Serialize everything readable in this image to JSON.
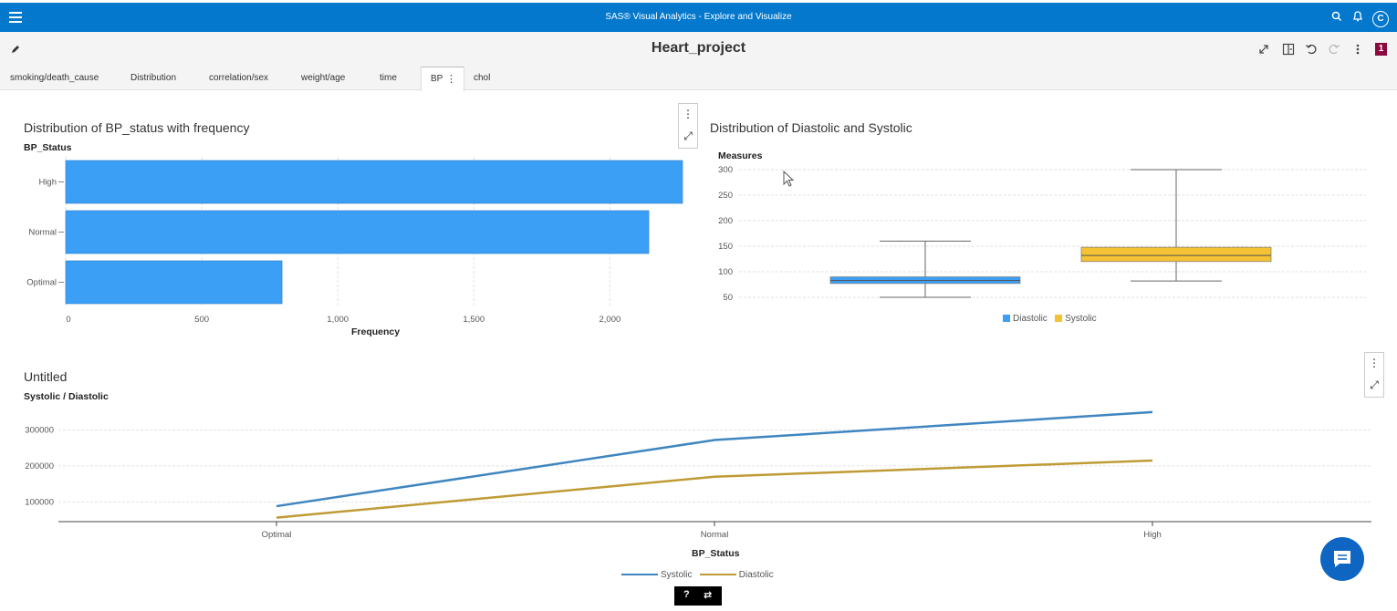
{
  "app": {
    "title": "SAS® Visual Analytics - Explore and Visualize",
    "avatar_initial": "C",
    "menu_icon": "hamburger-icon",
    "icons": [
      "search-icon",
      "bell-icon"
    ]
  },
  "report": {
    "title": "Heart_project",
    "badge": "1",
    "tools": [
      "expand-icon",
      "panel-icon",
      "undo-icon",
      "redo-icon",
      "more-icon"
    ]
  },
  "tabs": [
    {
      "label": "smoking/death_cause"
    },
    {
      "label": "Distribution"
    },
    {
      "label": "correlation/sex"
    },
    {
      "label": "weight/age"
    },
    {
      "label": "time"
    },
    {
      "label": "BP",
      "active": true
    },
    {
      "label": "chol"
    }
  ],
  "charts": {
    "bar": {
      "title": "Distribution of BP_status with frequency",
      "yaxis_title": "BP_Status",
      "xaxis_title": "Frequency"
    },
    "box": {
      "title": "Distribution of Diastolic and Systolic",
      "yaxis_title": "Measures"
    },
    "line": {
      "title": "Untitled",
      "yaxis_title": "Systolic / Diastolic",
      "xaxis_title": "BP_Status"
    }
  },
  "chart_data": [
    {
      "type": "bar",
      "orientation": "horizontal",
      "title": "Distribution of BP_status with frequency",
      "ylabel": "BP_Status",
      "xlabel": "Frequency",
      "categories": [
        "High",
        "Normal",
        "Optimal"
      ],
      "values": [
        2267,
        2143,
        795
      ],
      "xlim": [
        0,
        2267
      ],
      "xticks": [
        0,
        500,
        1000,
        1500,
        2000
      ],
      "xtick_labels": [
        "0",
        "500",
        "1,000",
        "1,500",
        "2,000"
      ],
      "grid": true,
      "color": "#3a9ff5"
    },
    {
      "type": "box",
      "title": "Distribution of Diastolic and Systolic",
      "ylabel": "Measures",
      "categories": [
        "Diastolic",
        "Systolic"
      ],
      "boxes": [
        {
          "name": "Diastolic",
          "min": 50,
          "q1": 77,
          "median": 83,
          "q3": 90,
          "max": 160,
          "color": "#3a9ff5"
        },
        {
          "name": "Systolic",
          "min": 82,
          "q1": 120,
          "median": 132,
          "q3": 148,
          "max": 300,
          "color": "#f5c234"
        }
      ],
      "ylim": [
        50,
        300
      ],
      "yticks": [
        50,
        100,
        150,
        200,
        250,
        300
      ],
      "legend_position": "bottom",
      "grid": true
    },
    {
      "type": "line",
      "title": "Untitled",
      "ylabel": "Systolic / Diastolic",
      "xlabel": "BP_Status",
      "categories": [
        "Optimal",
        "Normal",
        "High"
      ],
      "series": [
        {
          "name": "Systolic",
          "values": [
            88000,
            272000,
            350000
          ],
          "color": "#3f86c0"
        },
        {
          "name": "Diastolic",
          "values": [
            56000,
            170000,
            215000
          ],
          "color": "#bf9b35"
        }
      ],
      "ylim": [
        45000,
        380000
      ],
      "yticks": [
        100000,
        200000,
        300000
      ],
      "legend_position": "bottom",
      "grid": true
    }
  ],
  "help": {
    "question": "?",
    "tool": "⇄"
  }
}
